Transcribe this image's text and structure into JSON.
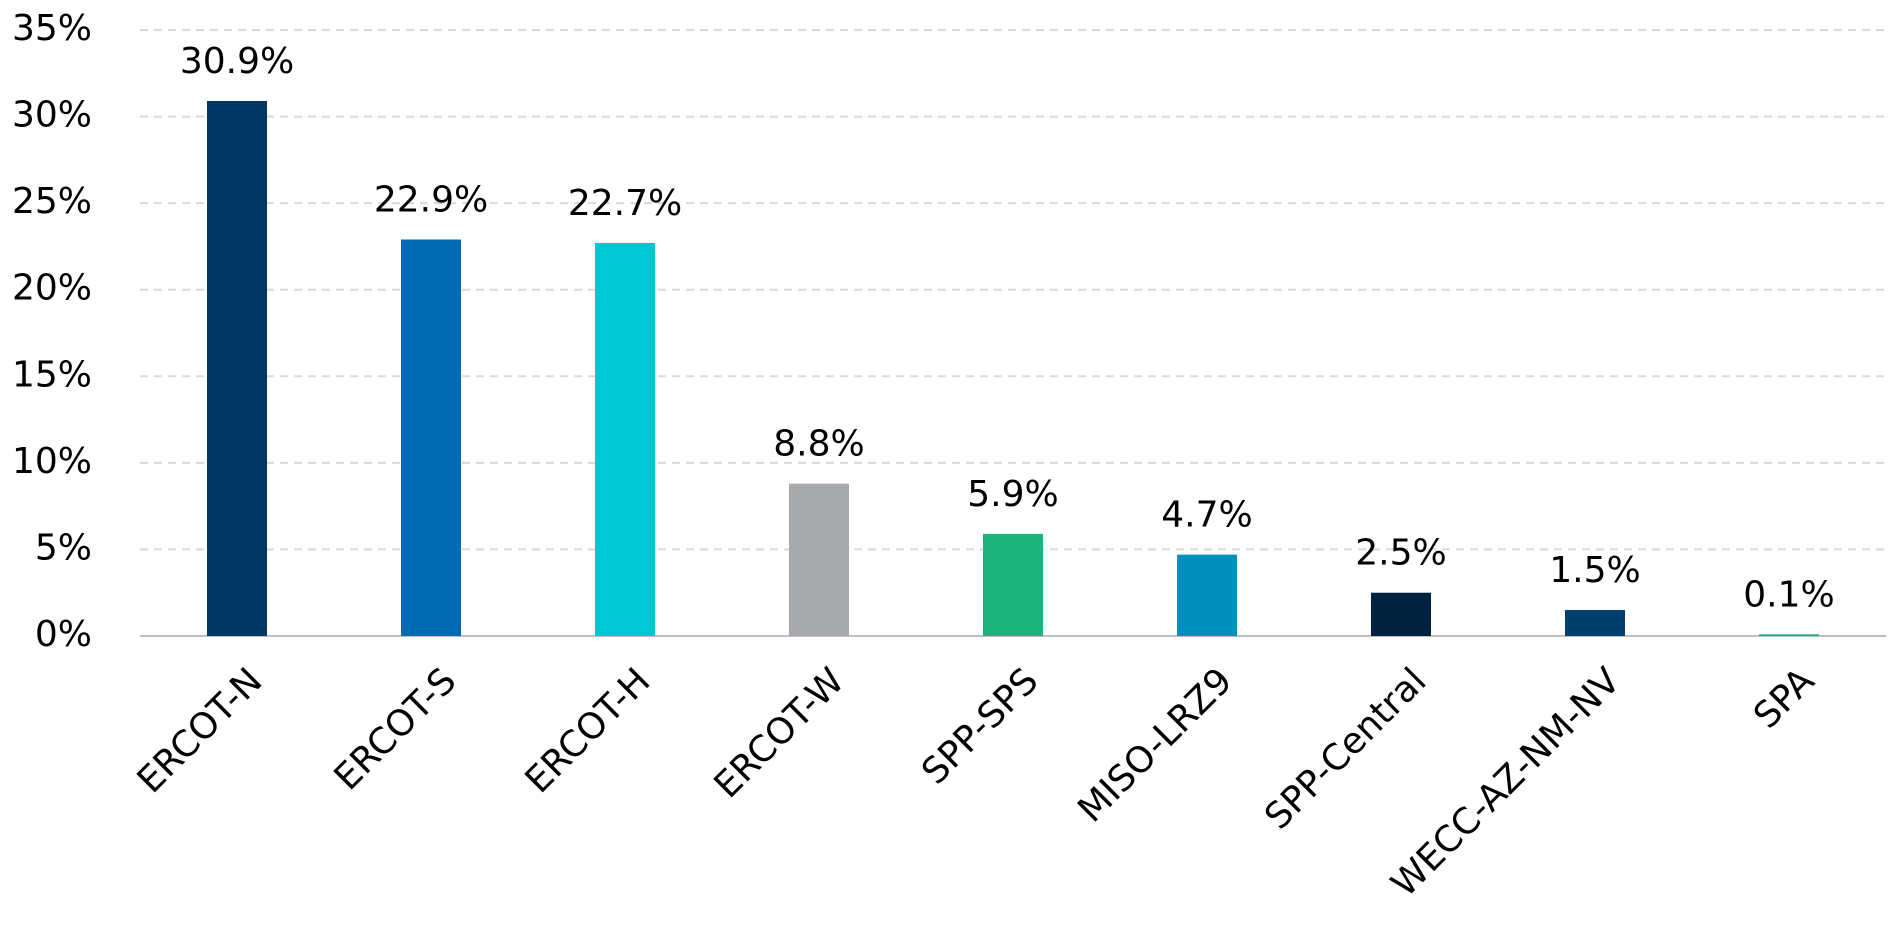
{
  "chart_data": {
    "type": "bar",
    "categories": [
      "ERCOT-N",
      "ERCOT-S",
      "ERCOT-H",
      "ERCOT-W",
      "SPP-SPS",
      "MISO-LRZ9",
      "SPP-Central",
      "WECC-AZ-NM-NV",
      "SPA"
    ],
    "values": [
      30.9,
      22.9,
      22.7,
      8.8,
      5.9,
      4.7,
      2.5,
      1.5,
      0.1
    ],
    "value_labels": [
      "30.9%",
      "22.9%",
      "22.7%",
      "8.8%",
      "5.9%",
      "4.7%",
      "2.5%",
      "1.5%",
      "0.1%"
    ],
    "colors": [
      "#003865",
      "#0069b4",
      "#00c8d2",
      "#a7a9ac",
      "#1cb47e",
      "#0090c0",
      "#00223f",
      "#003f6e",
      "#2aa98a"
    ],
    "ylim": [
      0,
      35
    ],
    "yticks": [
      {
        "value": 0,
        "label": "0%"
      },
      {
        "value": 5,
        "label": "5%"
      },
      {
        "value": 10,
        "label": "10%"
      },
      {
        "value": 15,
        "label": "15%"
      },
      {
        "value": 20,
        "label": "20%"
      },
      {
        "value": 25,
        "label": "25%"
      },
      {
        "value": 30,
        "label": "30%"
      },
      {
        "value": 35,
        "label": "35%"
      }
    ],
    "grid": true
  }
}
